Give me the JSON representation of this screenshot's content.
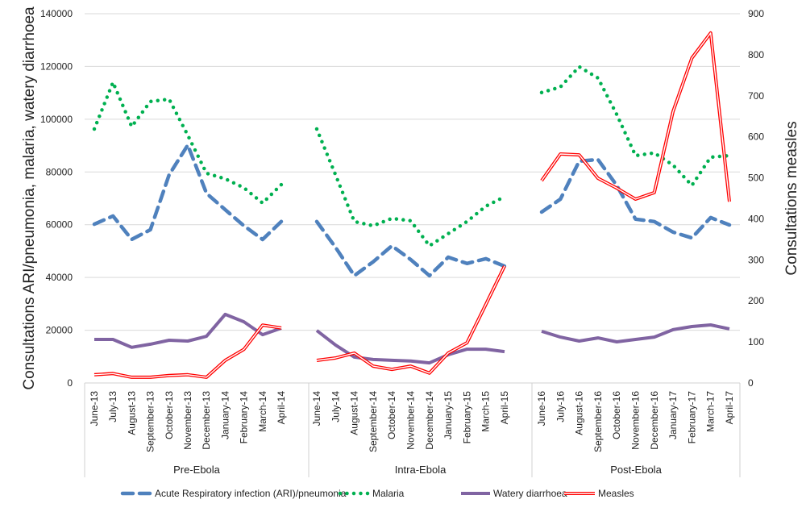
{
  "chart_data": {
    "type": "line",
    "ylabel": "Consultations ARI/pneumonia, malaria, watery diarrhoea",
    "y2label": "Consultations measles",
    "ylim": [
      0,
      140000
    ],
    "yticks": [
      "0",
      "20000",
      "40000",
      "60000",
      "80000",
      "100000",
      "120000",
      "140000"
    ],
    "y2lim": [
      0,
      900
    ],
    "y2ticks": [
      "0",
      "100",
      "200",
      "300",
      "400",
      "500",
      "600",
      "700",
      "800",
      "900"
    ],
    "grid": true,
    "legend_position": "bottom",
    "groups": [
      {
        "label": "Pre-Ebola",
        "categories": [
          "June-13",
          "July-13",
          "August-13",
          "September-13",
          "October-13",
          "November-13",
          "December-13",
          "January-14",
          "February-14",
          "March-14",
          "April-14"
        ]
      },
      {
        "label": "Intra-Ebola",
        "categories": [
          "June-14",
          "July-14",
          "August-14",
          "September-14",
          "October-14",
          "November-14",
          "December-14",
          "January-15",
          "February-15",
          "March-15",
          "April-15"
        ]
      },
      {
        "label": "Post-Ebola",
        "categories": [
          "June-16",
          "July-16",
          "August-16",
          "September-16",
          "October-16",
          "November-16",
          "December-16",
          "January-17",
          "February-17",
          "March-17",
          "April-17"
        ]
      }
    ],
    "series": [
      {
        "name": "Acute Respiratory infection (ARI)/pneumonia",
        "axis": "left",
        "style": "dashed",
        "color": "#4f81bd",
        "values": [
          [
            60200,
            63300,
            54400,
            58100,
            78900,
            90200,
            71900,
            65700,
            59600,
            54400,
            61200
          ],
          [
            61200,
            51400,
            40700,
            45900,
            52000,
            46800,
            40700,
            47700,
            45300,
            47100,
            44300
          ],
          [
            64800,
            69700,
            84100,
            84700,
            74900,
            62100,
            61200,
            57200,
            55000,
            62700,
            59900
          ]
        ]
      },
      {
        "name": "Malaria",
        "axis": "left",
        "style": "dotted",
        "color": "#00b050",
        "values": [
          [
            96300,
            114000,
            97200,
            106700,
            107600,
            93900,
            79500,
            77400,
            74000,
            68200,
            75200
          ],
          [
            96300,
            78900,
            61200,
            59600,
            62400,
            61500,
            52000,
            56600,
            61200,
            67000,
            70600
          ],
          [
            110100,
            112200,
            119900,
            115600,
            101800,
            86200,
            87200,
            82600,
            74900,
            85600,
            86200
          ]
        ]
      },
      {
        "name": "Watery diarrhoea",
        "axis": "left",
        "style": "solid",
        "color": "#8064a2",
        "values": [
          [
            16500,
            16500,
            13500,
            14700,
            16200,
            15900,
            17700,
            26000,
            23200,
            18300,
            20800
          ],
          [
            19900,
            14400,
            9800,
            8900,
            8600,
            8300,
            7600,
            10700,
            12800,
            12800,
            11900
          ],
          [
            19600,
            17400,
            15900,
            17100,
            15600,
            16500,
            17400,
            20200,
            21400,
            22000,
            20500
          ]
        ]
      },
      {
        "name": "Measles",
        "axis": "right",
        "style": "double",
        "color": "#ff0000",
        "values": [
          [
            20,
            23,
            14,
            14,
            18,
            20,
            14,
            55,
            82,
            141,
            134
          ],
          [
            55,
            61,
            73,
            41,
            33,
            41,
            24,
            73,
            98,
            191,
            285
          ],
          [
            493,
            558,
            556,
            499,
            475,
            448,
            464,
            662,
            792,
            853,
            442
          ]
        ]
      }
    ]
  }
}
